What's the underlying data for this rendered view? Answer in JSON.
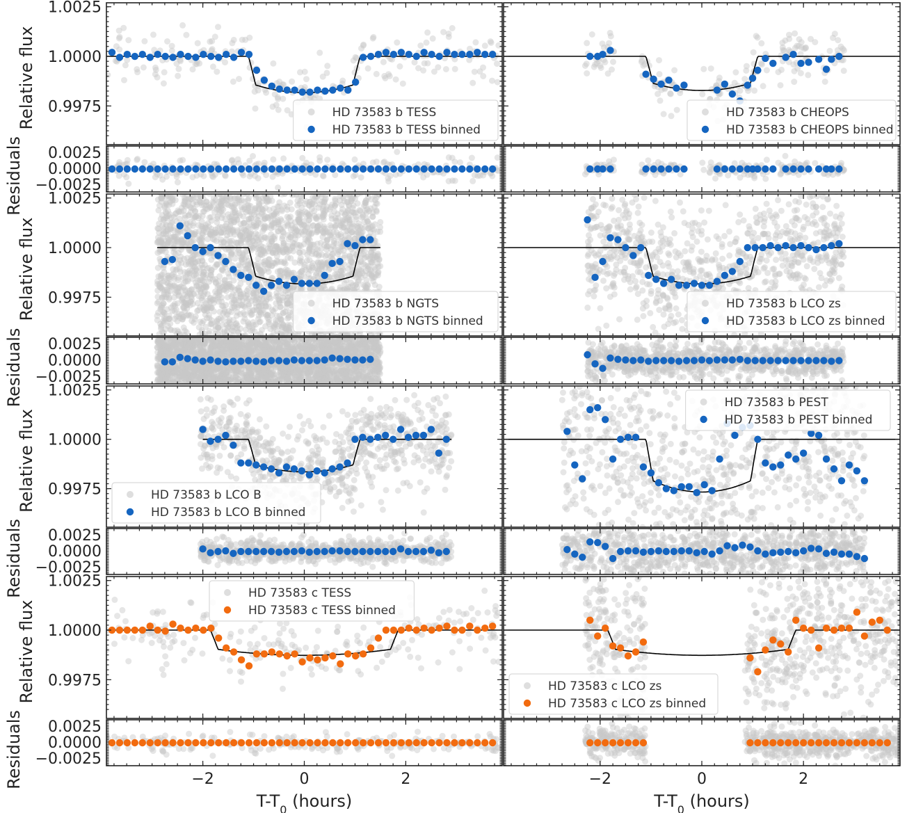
{
  "colors": {
    "raw": "#c8c8c8",
    "b_binned": "#1565c0",
    "c_binned": "#f26b0f",
    "model": "#000000",
    "legend_border": "#d9d9d9"
  },
  "axes_text": {
    "ylabel_flux": "Relative flux",
    "ylabel_resid": "Residuals",
    "xlabel": "T-T",
    "xlabel_sub": "0",
    "xlabel_unit": " (hours)",
    "flux_ticks": [
      "1.0025",
      "1.0000",
      "0.9975"
    ],
    "resid_ticks": [
      "0.0025",
      "0.0000",
      "−0.0025"
    ],
    "x_ticks": [
      "−2",
      "0",
      "2"
    ]
  },
  "chart_data": [
    {
      "type": "scatter",
      "col": 0,
      "row": 0,
      "legend": [
        "HD 73583 b TESS",
        "HD 73583 b TESS binned"
      ],
      "legend_pos": "lower-right",
      "color": "b",
      "raw_range": [
        -3.9,
        3.9
      ],
      "raw_density": 7,
      "scatter": 0.0007,
      "resid_scatter": 0.0009,
      "depth": 0.00183,
      "t14": 2.2,
      "ing": 0.14,
      "model_range": [
        -3.9,
        3.9
      ],
      "binned": {
        "x": [
          -3.79,
          -3.64,
          -3.49,
          -3.34,
          -3.19,
          -3.04,
          -2.89,
          -2.74,
          -2.59,
          -2.44,
          -2.29,
          -2.14,
          -1.99,
          -1.84,
          -1.69,
          -1.54,
          -1.39,
          -1.24,
          -1.09,
          -0.94,
          -0.79,
          -0.64,
          -0.49,
          -0.34,
          -0.19,
          -0.04,
          0.11,
          0.26,
          0.41,
          0.56,
          0.71,
          0.86,
          1.01,
          1.16,
          1.31,
          1.46,
          1.61,
          1.76,
          1.91,
          2.06,
          2.21,
          2.36,
          2.51,
          2.66,
          2.81,
          2.96,
          3.11,
          3.26,
          3.41,
          3.56,
          3.71
        ],
        "y": [
          1.0002,
          0.99995,
          1.0001,
          1.0,
          1.0001,
          0.99995,
          1.0001,
          1.0,
          0.99995,
          1.0001,
          1.0,
          0.99995,
          1.0001,
          1.0,
          0.99995,
          1.0001,
          0.99995,
          1.0002,
          1.0001,
          0.9993,
          0.9988,
          0.9985,
          0.99835,
          0.9983,
          0.9983,
          0.9982,
          0.9982,
          0.9983,
          0.99825,
          0.9983,
          0.9984,
          0.9983,
          0.9987,
          0.99995,
          1.0,
          1.0001,
          1.0002,
          1.0001,
          1.0002,
          1.0001,
          1.0,
          1.0002,
          1.0001,
          1.0,
          1.0002,
          1.0001,
          1.0001,
          1.0001,
          1.0002,
          1.0001,
          1.0001
        ],
        "resid": [
          0.0,
          0.0,
          0.0,
          0.0,
          0.0,
          0.0,
          0.0,
          0.0,
          0.0,
          0.0,
          0.0,
          0.0,
          0.0,
          0.0,
          0.0,
          0.0,
          0.0,
          0.0,
          0.0,
          0.0,
          0.0,
          0.0,
          0.0,
          0.0,
          0.0,
          0.0,
          0.0,
          0.0,
          0.0,
          0.0,
          0.0,
          0.0,
          0.0,
          0.0,
          0.0,
          0.0,
          0.0,
          0.0,
          0.0,
          0.0,
          0.0,
          0.0,
          0.0,
          0.0,
          0.0,
          0.0,
          0.0,
          0.0,
          0.0,
          0.0,
          0.0
        ]
      }
    },
    {
      "type": "scatter",
      "col": 1,
      "row": 0,
      "legend": [
        "HD 73583 b CHEOPS",
        "HD 73583 b CHEOPS binned"
      ],
      "legend_pos": "lower-right",
      "color": "b",
      "raw_segments": [
        [
          -2.3,
          -1.7
        ],
        [
          -1.2,
          -0.4
        ],
        [
          0.0,
          1.3
        ],
        [
          1.5,
          2.8
        ]
      ],
      "raw_density": 12,
      "scatter": 0.0006,
      "resid_scatter": 0.0006,
      "depth": 0.00172,
      "t14": 2.2,
      "ing": 0.14,
      "model_range": [
        -3.9,
        3.9
      ],
      "binned": {
        "x": [
          -2.2,
          -2.05,
          -1.95,
          -1.8,
          -1.1,
          -0.95,
          -0.8,
          -0.65,
          -0.5,
          -0.35,
          0.3,
          0.45,
          0.6,
          0.75,
          0.9,
          1.0,
          1.1,
          1.25,
          1.4,
          1.65,
          1.8,
          1.95,
          2.1,
          2.3,
          2.45,
          2.55,
          2.7
        ],
        "y": [
          1.0,
          1.0,
          1.0001,
          1.0003,
          0.9991,
          0.99885,
          0.9986,
          0.9988,
          0.9984,
          0.99855,
          0.9983,
          0.9986,
          0.9981,
          0.99775,
          0.99855,
          0.9989,
          0.9993,
          0.9999,
          0.99965,
          0.99995,
          1.0001,
          0.99965,
          0.9997,
          0.99985,
          0.99935,
          0.99985,
          1.0
        ],
        "resid": [
          0.0,
          0.0,
          0.0,
          0.0,
          0.0,
          0.0,
          0.0,
          0.0,
          0.0,
          0.0,
          0.0,
          0.0,
          0.0,
          0.0,
          0.0,
          0.0,
          0.0,
          0.0,
          0.0,
          0.0,
          0.0,
          0.0,
          0.0,
          0.0,
          0.0,
          0.0,
          0.0
        ]
      }
    },
    {
      "type": "scatter",
      "col": 0,
      "row": 1,
      "legend": [
        "HD 73583 b NGTS",
        "HD 73583 b NGTS binned"
      ],
      "legend_pos": "lower-right",
      "color": "b",
      "raw_range": [
        -2.9,
        1.5
      ],
      "raw_density": 320,
      "scatter": 0.006,
      "resid_scatter": 0.006,
      "depth": 0.00183,
      "t14": 2.2,
      "ing": 0.14,
      "model_range": [
        -2.9,
        1.5
      ],
      "binned": {
        "x": [
          -2.75,
          -2.6,
          -2.45,
          -2.3,
          -2.15,
          -2.0,
          -1.85,
          -1.7,
          -1.55,
          -1.4,
          -1.25,
          -1.1,
          -0.95,
          -0.8,
          -0.65,
          -0.5,
          -0.35,
          -0.2,
          -0.05,
          0.1,
          0.25,
          0.4,
          0.55,
          0.7,
          0.85,
          1.0,
          1.15,
          1.3
        ],
        "y": [
          0.9993,
          0.9994,
          1.0011,
          1.0006,
          1.0,
          0.9998,
          1.0,
          0.9996,
          0.9993,
          0.9989,
          0.9986,
          0.9985,
          0.9981,
          0.9978,
          0.9981,
          0.9983,
          0.9981,
          0.9984,
          0.9982,
          0.9982,
          0.9982,
          0.9986,
          0.9992,
          0.9993,
          1.0002,
          1.0001,
          1.0004,
          1.0004
        ],
        "resid": [
          -0.0002,
          -0.0002,
          0.0005,
          0.0003,
          0.0001,
          -0.0001,
          0.0001,
          -0.0001,
          -0.0002,
          -0.0001,
          -0.0001,
          0.0,
          -0.0001,
          -0.0002,
          0.0,
          0.0,
          -0.0001,
          0.0001,
          0.0,
          0.0,
          0.0,
          0.0001,
          0.0004,
          0.0003,
          0.0002,
          0.0001,
          0.0001,
          0.0002
        ]
      }
    },
    {
      "type": "scatter",
      "col": 1,
      "row": 1,
      "legend": [
        "HD 73583 b LCO zs",
        "HD 73583 b LCO zs binned"
      ],
      "legend_pos": "lower-right",
      "color": "b",
      "raw_range": [
        -2.3,
        2.8
      ],
      "raw_density": 45,
      "scatter": 0.0016,
      "resid_scatter": 0.0013,
      "depth": 0.00183,
      "t14": 2.2,
      "ing": 0.14,
      "model_range": [
        -3.9,
        3.9
      ],
      "binned": {
        "x": [
          -2.25,
          -2.1,
          -1.95,
          -1.8,
          -1.65,
          -1.5,
          -1.35,
          -1.2,
          -1.05,
          -0.9,
          -0.75,
          -0.6,
          -0.45,
          -0.3,
          -0.15,
          0.0,
          0.15,
          0.3,
          0.45,
          0.6,
          0.75,
          0.9,
          1.05,
          1.2,
          1.35,
          1.5,
          1.65,
          1.8,
          1.95,
          2.1,
          2.25,
          2.4,
          2.55,
          2.7
        ],
        "y": [
          1.0014,
          0.9985,
          0.9993,
          1.0005,
          1.0004,
          1.0,
          0.9996,
          1.0,
          0.9986,
          0.9984,
          0.9982,
          0.9984,
          0.9981,
          0.9981,
          0.9982,
          0.9981,
          0.9981,
          0.9983,
          0.9986,
          0.9988,
          0.9993,
          1.0,
          1.0,
          1.0,
          1.0001,
          1.0,
          1.0001,
          1.0,
          1.0001,
          1.0,
          0.9999,
          1.0,
          1.0001,
          1.0002
        ],
        "resid": [
          0.0009,
          -0.0005,
          -0.0012,
          0.0004,
          0.0002,
          0.0001,
          0.0,
          0.0001,
          -0.0001,
          0.0,
          0.0,
          0.0,
          -0.0001,
          0.0,
          0.0,
          0.0001,
          0.0,
          0.0001,
          0.0001,
          0.0001,
          0.0002,
          0.0,
          0.0,
          0.0,
          0.0,
          0.0,
          0.0,
          0.0,
          0.0,
          0.0,
          0.0,
          0.0,
          -0.0001,
          0.0
        ]
      }
    },
    {
      "type": "scatter",
      "col": 0,
      "row": 2,
      "legend": [
        "HD 73583 b LCO B",
        "HD 73583 b LCO B binned"
      ],
      "legend_pos": "lower-left",
      "color": "b",
      "raw_range": [
        -2.05,
        2.9
      ],
      "raw_density": 35,
      "scatter": 0.0012,
      "resid_scatter": 0.0009,
      "depth": 0.00165,
      "t14": 2.2,
      "ing": 0.14,
      "model_range": [
        -2.0,
        2.9
      ],
      "binned": {
        "x": [
          -2.0,
          -1.85,
          -1.7,
          -1.55,
          -1.4,
          -1.25,
          -1.1,
          -0.95,
          -0.8,
          -0.65,
          -0.5,
          -0.35,
          -0.2,
          -0.05,
          0.1,
          0.25,
          0.4,
          0.55,
          0.7,
          0.85,
          1.0,
          1.15,
          1.3,
          1.45,
          1.6,
          1.75,
          1.9,
          2.05,
          2.2,
          2.35,
          2.5,
          2.65,
          2.8
        ],
        "y": [
          1.0005,
          0.9999,
          1.0,
          1.0002,
          0.9997,
          0.9988,
          0.9988,
          0.9987,
          0.9986,
          0.9985,
          0.9983,
          0.9986,
          0.9985,
          0.9984,
          0.9982,
          0.9984,
          0.9983,
          0.9985,
          0.9986,
          0.9988,
          1.0,
          1.0001,
          1.0,
          1.0001,
          1.0002,
          1.0,
          1.0005,
          1.0001,
          1.0002,
          1.0002,
          1.0005,
          0.9993,
          1.0
        ],
        "resid": [
          0.0004,
          -0.0002,
          0.0,
          0.0001,
          -0.0003,
          0.0,
          0.0,
          0.0,
          0.0,
          0.0,
          -0.0001,
          0.0,
          0.0,
          0.0001,
          -0.0001,
          0.0,
          0.0,
          0.0001,
          0.0001,
          0.0,
          0.0,
          0.0,
          0.0,
          0.0,
          0.0,
          0.0,
          0.0004,
          0.0,
          0.0,
          0.0,
          0.0002,
          -0.0002,
          0.0
        ]
      }
    },
    {
      "type": "scatter",
      "col": 1,
      "row": 2,
      "legend": [
        "HD 73583 b PEST",
        "HD 73583 b PEST binned"
      ],
      "legend_pos": "upper-right",
      "color": "b",
      "raw_range": [
        -2.75,
        3.2
      ],
      "raw_density": 40,
      "scatter": 0.0028,
      "resid_scatter": 0.0022,
      "depth": 0.00267,
      "t14": 2.2,
      "ing": 0.14,
      "model_range": [
        -3.9,
        3.9
      ],
      "binned": {
        "x": [
          -2.65,
          -2.5,
          -2.35,
          -2.2,
          -2.05,
          -1.9,
          -1.75,
          -1.6,
          -1.45,
          -1.3,
          -1.15,
          -1.0,
          -0.85,
          -0.7,
          -0.55,
          -0.4,
          -0.25,
          -0.1,
          0.05,
          0.2,
          0.35,
          0.5,
          0.65,
          0.8,
          0.95,
          1.1,
          1.25,
          1.4,
          1.55,
          1.7,
          1.85,
          2.0,
          2.15,
          2.3,
          2.45,
          2.6,
          2.75,
          2.9,
          3.05,
          3.2
        ],
        "y": [
          1.0004,
          0.9987,
          0.998,
          1.0015,
          1.0016,
          1.001,
          0.999,
          1.0,
          1.0001,
          1.0001,
          0.9986,
          0.9983,
          0.9978,
          0.9975,
          0.9974,
          0.9976,
          0.9976,
          0.9973,
          0.9977,
          0.9974,
          0.999,
          1.0008,
          1.0002,
          1.0006,
          1.0007,
          1.0,
          0.9988,
          0.9986,
          0.9987,
          0.9992,
          0.999,
          0.9993,
          1.0003,
          1.0002,
          0.999,
          0.9985,
          0.9979,
          0.9987,
          0.9984,
          0.9979
        ],
        "resid": [
          0.0003,
          -0.0004,
          -0.0009,
          0.0015,
          0.0014,
          0.0008,
          -0.0011,
          0.0,
          0.0001,
          0.0001,
          -0.0001,
          0.0,
          0.0001,
          0.0,
          0.0,
          0.0001,
          0.0001,
          -0.0002,
          0.0,
          -0.0004,
          0.0001,
          0.0009,
          0.0006,
          0.001,
          0.0007,
          0.0001,
          -0.0004,
          -0.0002,
          -0.0001,
          0.0,
          -0.0002,
          0.0001,
          0.0005,
          0.0004,
          -0.0003,
          -0.0001,
          -0.0004,
          -0.0004,
          -0.0008,
          -0.0011
        ]
      }
    },
    {
      "type": "scatter",
      "col": 0,
      "row": 3,
      "legend": [
        "HD 73583 c TESS",
        "HD 73583 c TESS binned"
      ],
      "legend_pos": "upper-center",
      "color": "c",
      "raw_range": [
        -3.9,
        3.9
      ],
      "raw_density": 7,
      "scatter": 0.0009,
      "resid_scatter": 0.0007,
      "depth": 0.00127,
      "t14": 3.7,
      "ing": 0.15,
      "model_range": [
        -3.9,
        3.9
      ],
      "binned": {
        "x": [
          -3.79,
          -3.64,
          -3.49,
          -3.34,
          -3.19,
          -3.04,
          -2.89,
          -2.74,
          -2.59,
          -2.44,
          -2.29,
          -2.14,
          -1.99,
          -1.84,
          -1.69,
          -1.54,
          -1.39,
          -1.24,
          -1.09,
          -0.94,
          -0.79,
          -0.64,
          -0.49,
          -0.34,
          -0.19,
          -0.04,
          0.11,
          0.26,
          0.41,
          0.56,
          0.71,
          0.86,
          1.01,
          1.16,
          1.31,
          1.46,
          1.61,
          1.76,
          1.91,
          2.06,
          2.21,
          2.36,
          2.51,
          2.66,
          2.81,
          2.96,
          3.11,
          3.26,
          3.41,
          3.56,
          3.71
        ],
        "y": [
          1.0,
          1.0,
          1.0,
          1.0,
          1.0,
          1.0002,
          1.0,
          0.99995,
          1.0003,
          1.0001,
          1.0,
          1.0001,
          1.0,
          1.0001,
          0.9996,
          0.9991,
          0.9989,
          0.9985,
          0.9982,
          0.9988,
          0.9988,
          0.9989,
          0.9988,
          0.9987,
          0.9988,
          0.9984,
          0.9986,
          0.9985,
          0.9986,
          0.9987,
          0.9983,
          0.9988,
          0.9987,
          0.9988,
          0.9991,
          0.9996,
          1.0,
          1.0,
          1.0,
          1.0001,
          1.0,
          1.0001,
          1.0,
          1.0001,
          1.0002,
          1.0,
          1.0,
          1.0002,
          1.0,
          1.0001,
          1.0002
        ],
        "resid": [
          0.0,
          0.0,
          0.0,
          0.0,
          0.0,
          0.0,
          0.0,
          0.0,
          0.0,
          0.0,
          0.0,
          0.0,
          0.0,
          0.0,
          0.0,
          0.0,
          0.0,
          0.0,
          0.0,
          0.0,
          0.0,
          0.0,
          0.0,
          0.0,
          0.0,
          0.0,
          0.0,
          0.0,
          0.0,
          0.0,
          0.0,
          0.0,
          0.0,
          0.0,
          0.0,
          0.0,
          0.0,
          0.0,
          0.0,
          0.0,
          0.0,
          0.0,
          0.0,
          0.0,
          0.0,
          0.0,
          0.0,
          0.0,
          0.0,
          0.0,
          0.0
        ]
      }
    },
    {
      "type": "scatter",
      "col": 1,
      "row": 3,
      "legend": [
        "HD 73583 c LCO zs",
        "HD 73583 c LCO zs binned"
      ],
      "legend_pos": "lower-left",
      "color": "c",
      "raw_segments": [
        [
          -2.3,
          -1.1
        ],
        [
          0.85,
          3.9
        ]
      ],
      "raw_density": 40,
      "scatter": 0.0018,
      "resid_scatter": 0.0012,
      "depth": 0.00127,
      "t14": 3.7,
      "ing": 0.15,
      "model_range": [
        -3.9,
        3.9
      ],
      "binned": {
        "x": [
          -2.2,
          -2.05,
          -1.9,
          -1.75,
          -1.6,
          -1.45,
          -1.3,
          -1.15,
          0.95,
          1.1,
          1.25,
          1.4,
          1.55,
          1.7,
          1.85,
          2.0,
          2.15,
          2.3,
          2.45,
          2.6,
          2.75,
          2.9,
          3.05,
          3.2,
          3.35,
          3.5,
          3.65
        ],
        "y": [
          1.0005,
          0.9997,
          1.0001,
          0.9992,
          0.9991,
          0.9987,
          0.9989,
          0.9994,
          0.9986,
          0.9979,
          0.999,
          0.9995,
          0.9993,
          0.9989,
          1.0005,
          1.0001,
          1.0,
          0.9991,
          1.0001,
          1.0,
          1.0001,
          1.0001,
          1.0009,
          0.9997,
          1.0004,
          1.0005,
          1.0
        ]
      }
    }
  ]
}
